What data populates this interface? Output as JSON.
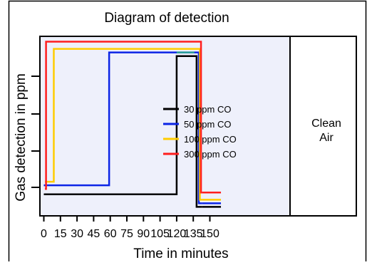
{
  "chart_data": {
    "type": "line",
    "title": "Diagram of detection",
    "xlabel": "Time in minutes",
    "ylabel": "Gas detection in ppm",
    "x_ticks": [
      0,
      15,
      30,
      45,
      60,
      75,
      90,
      105,
      120,
      135,
      150
    ],
    "xlim": [
      -1,
      165
    ],
    "ylim": [
      0,
      100
    ],
    "grid": false,
    "legend_position": "center-right",
    "clean_air_label": [
      "Clean",
      "Air"
    ],
    "clean_air_start": 135,
    "series": [
      {
        "name": "30 ppm CO",
        "color": "#000000",
        "x": [
          0,
          120,
          120,
          138,
          138,
          143
        ],
        "y": [
          12,
          12,
          89,
          89,
          5,
          5
        ],
        "continuation": {
          "x": [
            143,
            160
          ],
          "y": [
            5,
            5
          ]
        }
      },
      {
        "name": "50 ppm CO",
        "color": "#0b24e6",
        "x": [
          0,
          59,
          59,
          140,
          140,
          143
        ],
        "y": [
          17,
          17,
          91,
          91,
          7,
          7
        ],
        "continuation": {
          "x": [
            143,
            160
          ],
          "y": [
            7,
            7
          ]
        }
      },
      {
        "name": "100 ppm CO",
        "color": "#ffcc00",
        "x": [
          1,
          9,
          9,
          141,
          141,
          143
        ],
        "y": [
          19,
          19,
          93,
          93,
          9,
          9
        ],
        "continuation": {
          "x": [
            143,
            160
          ],
          "y": [
            9,
            9
          ]
        }
      },
      {
        "name": "300 ppm CO",
        "color": "#ff1e1e",
        "x": [
          1,
          2,
          2,
          142,
          142,
          143
        ],
        "y": [
          15,
          15,
          97,
          97,
          13,
          13
        ],
        "continuation": {
          "x": [
            143,
            160
          ],
          "y": [
            13,
            13
          ]
        }
      }
    ],
    "overlap_segment": {
      "color": "#2aa198",
      "x": [
        120,
        136
      ],
      "y": [
        91,
        91
      ]
    }
  }
}
